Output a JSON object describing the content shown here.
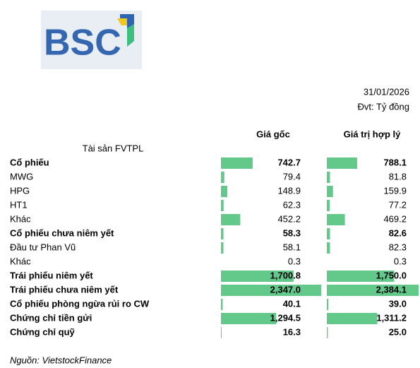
{
  "logo": {
    "text": "BSC"
  },
  "header": {
    "date": "31/01/2026",
    "unit": "Đvt: Tỷ đồng"
  },
  "table": {
    "columns": [
      "Giá gốc",
      "Giá trị hợp lý"
    ],
    "group_label": "Tài sản FVTPL",
    "bar_color": "#63c98b",
    "rows": [
      {
        "label": "Cổ phiếu",
        "bold": true,
        "cost": 742.7,
        "fair": 788.1
      },
      {
        "label": "MWG",
        "bold": false,
        "cost": 79.4,
        "fair": 81.8
      },
      {
        "label": "HPG",
        "bold": false,
        "cost": 148.9,
        "fair": 159.9
      },
      {
        "label": "HT1",
        "bold": false,
        "cost": 62.3,
        "fair": 77.2
      },
      {
        "label": "Khác",
        "bold": false,
        "cost": 452.2,
        "fair": 469.2
      },
      {
        "label": "Cổ phiếu chưa niêm yết",
        "bold": true,
        "cost": 58.3,
        "fair": 82.6
      },
      {
        "label": "Đầu tư Phan Vũ",
        "bold": false,
        "cost": 58.1,
        "fair": 82.3
      },
      {
        "label": "Khác",
        "bold": false,
        "cost": 0.3,
        "fair": 0.3
      },
      {
        "label": "Trái phiếu niêm yết",
        "bold": true,
        "cost": {
          "value": 1700.8,
          "label": "1,700.8"
        },
        "fair": {
          "value": 1750.0,
          "label": "1,750.0"
        }
      },
      {
        "label": "Trái phiếu chưa niêm yết",
        "bold": true,
        "cost": {
          "value": 2347.0,
          "label": "2,347.0"
        },
        "fair": {
          "value": 2384.1,
          "label": "2,384.1"
        }
      },
      {
        "label": "Cổ phiếu phòng ngừa rủi ro CW",
        "bold": true,
        "cost": 40.1,
        "fair": {
          "value": 39.0,
          "label": "39.0"
        }
      },
      {
        "label": "Chứng chỉ tiền gửi",
        "bold": true,
        "cost": {
          "value": 1294.5,
          "label": "1,294.5"
        },
        "fair": {
          "value": 1311.2,
          "label": "1,311.2"
        }
      },
      {
        "label": "Chứng chỉ quỹ",
        "bold": true,
        "cost": 16.3,
        "fair": {
          "value": 25.0,
          "label": "25.0"
        }
      }
    ]
  },
  "footer": {
    "source": "Nguồn: VietstockFinance"
  }
}
